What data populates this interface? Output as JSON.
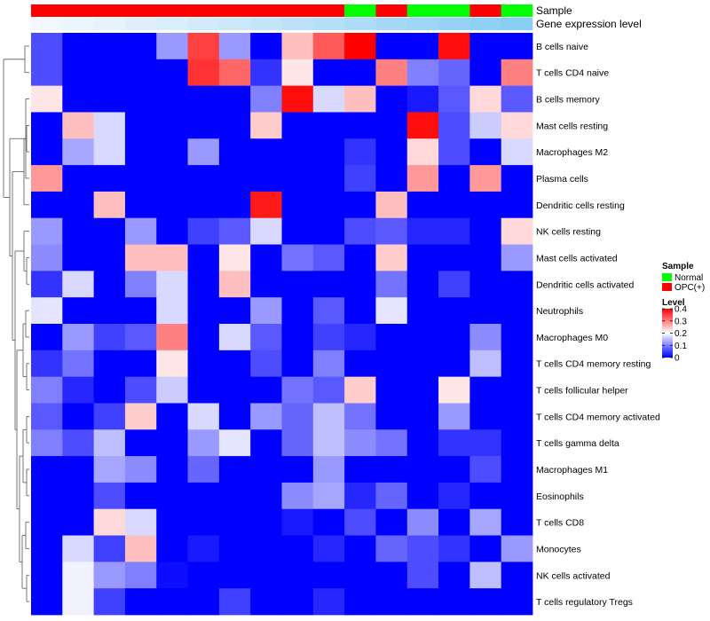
{
  "chart_data": {
    "type": "heatmap",
    "annotation_labels": [
      "Sample",
      "Gene expression level"
    ],
    "sample_groups": [
      "OPC(+)",
      "OPC(+)",
      "OPC(+)",
      "OPC(+)",
      "OPC(+)",
      "OPC(+)",
      "OPC(+)",
      "OPC(+)",
      "OPC(+)",
      "OPC(+)",
      "Normal",
      "OPC(+)",
      "Normal",
      "Normal",
      "OPC(+)",
      "Normal"
    ],
    "gene_expression_level": [
      0.02,
      0.05,
      0.1,
      0.16,
      0.22,
      0.28,
      0.34,
      0.41,
      0.47,
      0.53,
      0.59,
      0.66,
      0.72,
      0.78,
      0.85,
      0.92
    ],
    "rows": [
      "B cells naive",
      "T cells CD4 naive",
      "B cells memory",
      "Mast cells resting",
      "Macrophages M2",
      "Plasma cells",
      "Dendritic cells resting",
      "NK cells resting",
      "Mast cells activated",
      "Dendritic cells activated",
      "Neutrophils",
      "Macrophages M0",
      "T cells CD4 memory resting",
      "T cells follicular helper",
      "T cells CD4 memory activated",
      "T cells gamma delta",
      "Macrophages M1",
      "Eosinophils",
      "T cells CD8",
      "Monocytes",
      "NK cells activated",
      "T cells regulatory  Tregs"
    ],
    "values": [
      [
        0.06,
        0.0,
        0.0,
        0.0,
        0.12,
        0.35,
        0.12,
        0.0,
        0.25,
        0.33,
        0.4,
        0.0,
        0.0,
        0.39,
        0.0,
        0.0
      ],
      [
        0.06,
        0.0,
        0.0,
        0.0,
        0.0,
        0.36,
        0.32,
        0.04,
        0.22,
        0.0,
        0.0,
        0.3,
        0.1,
        0.08,
        0.0,
        0.3
      ],
      [
        0.22,
        0.0,
        0.0,
        0.0,
        0.0,
        0.0,
        0.0,
        0.1,
        0.39,
        0.17,
        0.25,
        0.0,
        0.02,
        0.07,
        0.23,
        0.07
      ],
      [
        0.0,
        0.25,
        0.17,
        0.0,
        0.0,
        0.0,
        0.0,
        0.24,
        0.0,
        0.0,
        0.0,
        0.0,
        0.39,
        0.06,
        0.16,
        0.23
      ],
      [
        0.0,
        0.13,
        0.17,
        0.0,
        0.0,
        0.12,
        0.0,
        0.0,
        0.0,
        0.0,
        0.04,
        0.0,
        0.23,
        0.06,
        0.0,
        0.17
      ],
      [
        0.28,
        0.0,
        0.0,
        0.0,
        0.0,
        0.0,
        0.0,
        0.0,
        0.0,
        0.0,
        0.05,
        0.0,
        0.28,
        0.0,
        0.28,
        0.0
      ],
      [
        0.0,
        0.0,
        0.25,
        0.0,
        0.0,
        0.0,
        0.0,
        0.38,
        0.0,
        0.0,
        0.0,
        0.25,
        0.0,
        0.0,
        0.0,
        0.0
      ],
      [
        0.12,
        0.0,
        0.0,
        0.12,
        0.0,
        0.05,
        0.07,
        0.17,
        0.0,
        0.0,
        0.06,
        0.07,
        0.03,
        0.03,
        0.0,
        0.23
      ],
      [
        0.11,
        0.0,
        0.0,
        0.25,
        0.25,
        0.0,
        0.22,
        0.0,
        0.09,
        0.07,
        0.0,
        0.24,
        0.0,
        0.0,
        0.0,
        0.12
      ],
      [
        0.04,
        0.17,
        0.0,
        0.1,
        0.17,
        0.0,
        0.25,
        0.0,
        0.0,
        0.0,
        0.0,
        0.09,
        0.0,
        0.05,
        0.0,
        0.0
      ],
      [
        0.18,
        0.0,
        0.0,
        0.0,
        0.17,
        0.0,
        0.0,
        0.12,
        0.0,
        0.07,
        0.0,
        0.18,
        0.0,
        0.0,
        0.0,
        0.0
      ],
      [
        0.0,
        0.12,
        0.05,
        0.07,
        0.3,
        0.0,
        0.17,
        0.07,
        0.0,
        0.05,
        0.03,
        0.0,
        0.0,
        0.0,
        0.11,
        0.0
      ],
      [
        0.04,
        0.09,
        0.0,
        0.0,
        0.22,
        0.0,
        0.0,
        0.06,
        0.0,
        0.1,
        0.0,
        0.0,
        0.0,
        0.0,
        0.15,
        0.0
      ],
      [
        0.1,
        0.03,
        0.0,
        0.06,
        0.16,
        0.0,
        0.0,
        0.0,
        0.09,
        0.07,
        0.24,
        0.0,
        0.0,
        0.22,
        0.0,
        0.0
      ],
      [
        0.07,
        0.0,
        0.05,
        0.24,
        0.0,
        0.17,
        0.0,
        0.12,
        0.08,
        0.15,
        0.09,
        0.0,
        0.0,
        0.12,
        0.0,
        0.0
      ],
      [
        0.1,
        0.06,
        0.15,
        0.0,
        0.0,
        0.12,
        0.18,
        0.0,
        0.08,
        0.15,
        0.11,
        0.09,
        0.0,
        0.04,
        0.04,
        0.0
      ],
      [
        0.0,
        0.0,
        0.13,
        0.11,
        0.0,
        0.08,
        0.0,
        0.0,
        0.0,
        0.12,
        0.0,
        0.0,
        0.0,
        0.0,
        0.06,
        0.0
      ],
      [
        0.0,
        0.0,
        0.06,
        0.0,
        0.0,
        0.0,
        0.0,
        0.0,
        0.11,
        0.13,
        0.03,
        0.08,
        0.0,
        0.03,
        0.0,
        0.0
      ],
      [
        0.0,
        0.0,
        0.23,
        0.17,
        0.0,
        0.0,
        0.0,
        0.0,
        0.02,
        0.0,
        0.06,
        0.0,
        0.11,
        0.0,
        0.13,
        0.0
      ],
      [
        0.0,
        0.17,
        0.05,
        0.25,
        0.0,
        0.02,
        0.0,
        0.0,
        0.0,
        0.03,
        0.0,
        0.08,
        0.06,
        0.04,
        0.0,
        0.12
      ],
      [
        0.0,
        0.19,
        0.12,
        0.1,
        0.01,
        0.0,
        0.0,
        0.0,
        0.0,
        0.0,
        0.0,
        0.0,
        0.06,
        0.0,
        0.15,
        0.0
      ],
      [
        0.0,
        0.19,
        0.05,
        0.0,
        0.0,
        0.0,
        0.05,
        0.0,
        0.0,
        0.03,
        0.0,
        0.0,
        0.0,
        0.0,
        0.0,
        0.0
      ]
    ],
    "color_scale": {
      "min": 0,
      "max": 0.4,
      "stops": [
        {
          "value": 0,
          "color": "#0000ff"
        },
        {
          "value": 0.2,
          "color": "#ffffff"
        },
        {
          "value": 0.4,
          "color": "#ff0000"
        }
      ]
    },
    "dendrogram": {
      "description": "row clustering tree",
      "merges": [
        [
          "T cells regulatory  Tregs",
          "NK cells activated",
          0.05
        ],
        [
          "Monocytes",
          "T cells CD8",
          0.07
        ],
        [
          "Eosinophils",
          "Macrophages M1",
          0.09
        ],
        [
          "T cells gamma delta",
          "T cells CD4 memory activated",
          0.1
        ],
        [
          "T cells follicular helper",
          "T cells CD4 memory resting",
          0.11
        ],
        [
          "Macrophages M0",
          "Neutrophils",
          0.13
        ],
        [
          "Dendritic cells activated",
          "Mast cells activated",
          0.12
        ],
        [
          "Macrophages M2",
          "Mast cells resting",
          0.14
        ],
        [
          "B cells memory",
          "Plasma cells",
          0.2
        ],
        [
          "B cells naive",
          "T cells CD4 naive",
          0.35
        ]
      ]
    },
    "legend": {
      "sample": {
        "title": "Sample",
        "entries": [
          {
            "label": "Normal",
            "color": "#00ff00"
          },
          {
            "label": "OPC(+)",
            "color": "#ff0000"
          }
        ]
      },
      "level": {
        "title": "Level",
        "ticks": [
          0.4,
          0.3,
          0.2,
          0.1,
          0
        ],
        "tick_labels": [
          "0.4",
          "0.3",
          "0.2",
          "0.1",
          "0"
        ]
      },
      "placement": "right"
    },
    "annotation_colors": {
      "Normal": "#00ff00",
      "OPC(+)": "#ff0000",
      "expr_low": "#f2f8fd",
      "expr_high": "#7ec9f3"
    }
  }
}
